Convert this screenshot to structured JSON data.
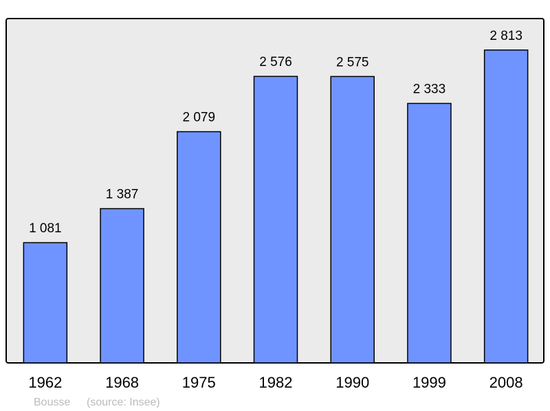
{
  "chart_data": {
    "type": "bar",
    "categories": [
      "1962",
      "1968",
      "1975",
      "1982",
      "1990",
      "1999",
      "2008"
    ],
    "values": [
      1081,
      1387,
      2079,
      2576,
      2575,
      2333,
      2813
    ],
    "data_labels": [
      "1 081",
      "1 387",
      "2 079",
      "2 576",
      "2 575",
      "2 333",
      "2 813"
    ],
    "title": "",
    "xlabel": "",
    "ylabel": "",
    "ylim": [
      0,
      3096
    ],
    "grid": false,
    "legend": "none",
    "colors": {
      "bar": "#7094ff",
      "plot_background": "#ebebeb",
      "frame": "#000000",
      "footer": "#bbbbbb"
    }
  },
  "footer": {
    "commune": "Bousse",
    "source": "(source: Insee)"
  }
}
